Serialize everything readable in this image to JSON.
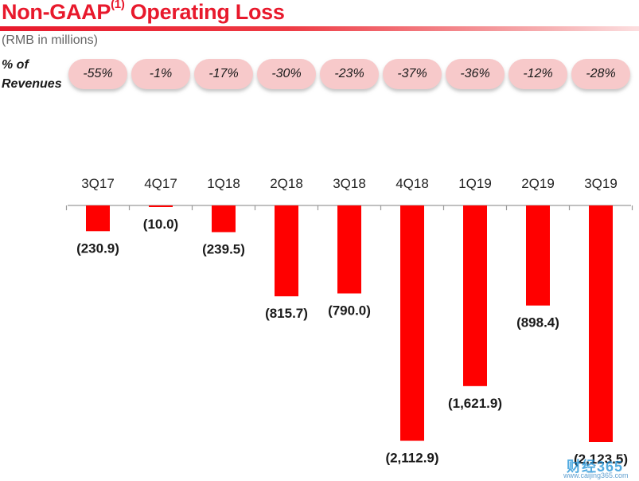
{
  "header": {
    "title": "Non-GAAP",
    "title_sup": "(1)",
    "title_rest": " Operating Loss",
    "subtitle": "(RMB in millions)",
    "pct_label_line1": "% of",
    "pct_label_line2": "Revenues"
  },
  "percent_of_revenues": [
    "-55%",
    "-1%",
    "-17%",
    "-30%",
    "-23%",
    "-37%",
    "-36%",
    "-12%",
    "-28%"
  ],
  "chart_data": {
    "type": "bar",
    "title": "Non-GAAP Operating Loss",
    "ylabel": "RMB in millions",
    "xlabel": "",
    "categories": [
      "3Q17",
      "4Q17",
      "1Q18",
      "2Q18",
      "3Q18",
      "4Q18",
      "1Q19",
      "2Q19",
      "3Q19"
    ],
    "values": [
      -230.9,
      -10.0,
      -239.5,
      -815.7,
      -790.0,
      -2112.9,
      -1621.9,
      -898.4,
      -2123.5
    ],
    "value_labels": [
      "(230.9)",
      "(10.0)",
      "(239.5)",
      "(815.7)",
      "(790.0)",
      "(2,112.9)",
      "(1,621.9)",
      "(898.4)",
      "(2,123.5)"
    ],
    "ylim": [
      -2150,
      0
    ],
    "grid": false,
    "bar_color": "#ff0000"
  },
  "watermark": {
    "text": "财经365",
    "url": "www.caijing365.com"
  }
}
